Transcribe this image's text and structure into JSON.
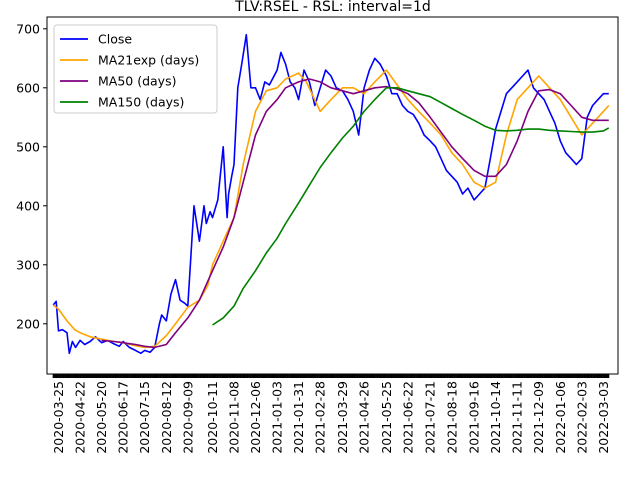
{
  "chart_data": {
    "type": "line",
    "title": "TLV:RSEL - RSL: interval=1d",
    "xlabel": "",
    "ylabel": "",
    "x_ticks": [
      "2020-03-25",
      "2020-04-22",
      "2020-05-20",
      "2020-06-17",
      "2020-07-15",
      "2020-08-12",
      "2020-09-09",
      "2020-10-11",
      "2020-11-08",
      "2020-12-06",
      "2021-01-03",
      "2021-01-31",
      "2021-02-28",
      "2021-03-29",
      "2021-04-26",
      "2021-05-25",
      "2021-06-22",
      "2021-07-21",
      "2021-08-18",
      "2021-09-16",
      "2021-10-14",
      "2021-11-11",
      "2021-12-09",
      "2022-01-06",
      "2022-02-03",
      "2022-03-03"
    ],
    "y_ticks": [
      200,
      300,
      400,
      500,
      600,
      700
    ],
    "ylim": [
      115,
      720
    ],
    "grid": false,
    "legend_position": "upper-left",
    "series": [
      {
        "name": "Close",
        "color": "#0000ff",
        "x": [
          "2020-03-18",
          "2020-03-22",
          "2020-03-25",
          "2020-03-30",
          "2020-04-05",
          "2020-04-08",
          "2020-04-12",
          "2020-04-16",
          "2020-04-22",
          "2020-04-28",
          "2020-05-05",
          "2020-05-12",
          "2020-05-20",
          "2020-05-28",
          "2020-06-05",
          "2020-06-12",
          "2020-06-17",
          "2020-06-25",
          "2020-07-03",
          "2020-07-10",
          "2020-07-15",
          "2020-07-22",
          "2020-07-28",
          "2020-08-03",
          "2020-08-06",
          "2020-08-12",
          "2020-08-18",
          "2020-08-24",
          "2020-08-30",
          "2020-09-05",
          "2020-09-09",
          "2020-09-17",
          "2020-09-24",
          "2020-09-30",
          "2020-10-03",
          "2020-10-08",
          "2020-10-11",
          "2020-10-18",
          "2020-10-25",
          "2020-10-30",
          "2020-11-01",
          "2020-11-05",
          "2020-11-08",
          "2020-11-13",
          "2020-11-18",
          "2020-11-24",
          "2020-11-30",
          "2020-12-06",
          "2020-12-12",
          "2020-12-18",
          "2020-12-24",
          "2021-01-03",
          "2021-01-08",
          "2021-01-14",
          "2021-01-20",
          "2021-01-26",
          "2021-01-31",
          "2021-02-07",
          "2021-02-14",
          "2021-02-21",
          "2021-02-28",
          "2021-03-07",
          "2021-03-14",
          "2021-03-21",
          "2021-03-29",
          "2021-04-05",
          "2021-04-12",
          "2021-04-19",
          "2021-04-26",
          "2021-05-03",
          "2021-05-10",
          "2021-05-17",
          "2021-05-25",
          "2021-06-01",
          "2021-06-08",
          "2021-06-15",
          "2021-06-22",
          "2021-06-29",
          "2021-07-06",
          "2021-07-13",
          "2021-07-21",
          "2021-07-28",
          "2021-08-04",
          "2021-08-11",
          "2021-08-18",
          "2021-08-25",
          "2021-09-01",
          "2021-09-08",
          "2021-09-16",
          "2021-09-23",
          "2021-09-30",
          "2021-10-07",
          "2021-10-14",
          "2021-10-21",
          "2021-10-28",
          "2021-11-04",
          "2021-11-11",
          "2021-11-18",
          "2021-11-25",
          "2021-12-02",
          "2021-12-09",
          "2021-12-16",
          "2021-12-23",
          "2021-12-30",
          "2022-01-06",
          "2022-01-13",
          "2022-01-20",
          "2022-01-27",
          "2022-02-03",
          "2022-02-10",
          "2022-02-17",
          "2022-02-24",
          "2022-03-03",
          "2022-03-10"
        ],
        "values": [
          232,
          238,
          188,
          190,
          185,
          150,
          170,
          160,
          172,
          165,
          170,
          178,
          168,
          172,
          166,
          162,
          170,
          160,
          155,
          150,
          155,
          152,
          160,
          200,
          215,
          205,
          250,
          275,
          240,
          235,
          230,
          400,
          340,
          400,
          370,
          390,
          380,
          410,
          500,
          380,
          420,
          450,
          470,
          600,
          640,
          690,
          600,
          600,
          580,
          610,
          605,
          630,
          660,
          640,
          610,
          600,
          580,
          630,
          610,
          570,
          600,
          630,
          620,
          600,
          595,
          580,
          560,
          520,
          600,
          630,
          650,
          640,
          620,
          590,
          590,
          570,
          560,
          555,
          540,
          520,
          510,
          500,
          480,
          460,
          450,
          440,
          420,
          430,
          410,
          420,
          430,
          480,
          530,
          560,
          590,
          600,
          610,
          620,
          630,
          600,
          590,
          580,
          560,
          540,
          510,
          490,
          480,
          470,
          480,
          550,
          570,
          580,
          590,
          590
        ]
      },
      {
        "name": "MA21exp (days)",
        "color": "#ffa500",
        "x": [
          "2020-03-18",
          "2020-03-25",
          "2020-04-05",
          "2020-04-15",
          "2020-04-22",
          "2020-05-05",
          "2020-05-20",
          "2020-06-05",
          "2020-06-17",
          "2020-07-03",
          "2020-07-15",
          "2020-07-28",
          "2020-08-12",
          "2020-08-24",
          "2020-09-09",
          "2020-09-24",
          "2020-10-05",
          "2020-10-11",
          "2020-10-25",
          "2020-11-08",
          "2020-11-20",
          "2020-12-06",
          "2020-12-20",
          "2021-01-03",
          "2021-01-14",
          "2021-01-31",
          "2021-02-10",
          "2021-02-28",
          "2021-03-14",
          "2021-03-29",
          "2021-04-12",
          "2021-04-26",
          "2021-05-10",
          "2021-05-25",
          "2021-06-08",
          "2021-06-22",
          "2021-07-06",
          "2021-07-21",
          "2021-08-04",
          "2021-08-18",
          "2021-09-01",
          "2021-09-16",
          "2021-09-30",
          "2021-10-14",
          "2021-10-28",
          "2021-11-11",
          "2021-11-25",
          "2021-12-09",
          "2021-12-23",
          "2022-01-06",
          "2022-01-20",
          "2022-02-03",
          "2022-02-17",
          "2022-03-03",
          "2022-03-10"
        ],
        "values": [
          232,
          225,
          205,
          190,
          185,
          178,
          174,
          170,
          168,
          163,
          160,
          162,
          180,
          200,
          228,
          240,
          265,
          300,
          340,
          380,
          470,
          560,
          595,
          600,
          615,
          625,
          610,
          560,
          580,
          600,
          600,
          590,
          610,
          630,
          605,
          580,
          560,
          540,
          520,
          490,
          470,
          440,
          430,
          440,
          520,
          580,
          600,
          620,
          600,
          580,
          550,
          520,
          540,
          560,
          570
        ]
      },
      {
        "name": "MA50 (days)",
        "color": "#800080",
        "x": [
          "2020-05-20",
          "2020-06-05",
          "2020-06-17",
          "2020-07-03",
          "2020-07-15",
          "2020-07-28",
          "2020-08-12",
          "2020-08-24",
          "2020-09-09",
          "2020-09-24",
          "2020-10-11",
          "2020-10-25",
          "2020-11-08",
          "2020-11-20",
          "2020-12-06",
          "2020-12-20",
          "2021-01-03",
          "2021-01-14",
          "2021-01-31",
          "2021-02-14",
          "2021-02-28",
          "2021-03-14",
          "2021-03-29",
          "2021-04-12",
          "2021-04-26",
          "2021-05-10",
          "2021-05-25",
          "2021-06-08",
          "2021-06-22",
          "2021-07-06",
          "2021-07-21",
          "2021-08-04",
          "2021-08-18",
          "2021-09-01",
          "2021-09-16",
          "2021-09-30",
          "2021-10-14",
          "2021-10-28",
          "2021-11-11",
          "2021-11-25",
          "2021-12-09",
          "2021-12-23",
          "2022-01-06",
          "2022-01-20",
          "2022-02-03",
          "2022-02-17",
          "2022-03-03",
          "2022-03-10"
        ],
        "values": [
          172,
          170,
          168,
          165,
          162,
          160,
          165,
          185,
          210,
          240,
          290,
          330,
          380,
          440,
          520,
          560,
          580,
          600,
          610,
          615,
          610,
          600,
          595,
          590,
          595,
          600,
          602,
          598,
          590,
          575,
          550,
          525,
          500,
          480,
          460,
          450,
          450,
          470,
          510,
          560,
          595,
          597,
          590,
          570,
          550,
          545,
          545,
          545
        ]
      },
      {
        "name": "MA150 (days)",
        "color": "#008000",
        "x": [
          "2020-10-11",
          "2020-10-25",
          "2020-11-08",
          "2020-11-20",
          "2020-12-06",
          "2020-12-20",
          "2021-01-03",
          "2021-01-14",
          "2021-01-31",
          "2021-02-14",
          "2021-02-28",
          "2021-03-14",
          "2021-03-29",
          "2021-04-12",
          "2021-04-26",
          "2021-05-10",
          "2021-05-25",
          "2021-06-08",
          "2021-06-22",
          "2021-07-06",
          "2021-07-21",
          "2021-08-04",
          "2021-08-18",
          "2021-09-01",
          "2021-09-16",
          "2021-09-30",
          "2021-10-14",
          "2021-10-28",
          "2021-11-11",
          "2021-11-25",
          "2021-12-09",
          "2021-12-23",
          "2022-01-06",
          "2022-01-20",
          "2022-02-03",
          "2022-02-17",
          "2022-03-03",
          "2022-03-10"
        ],
        "values": [
          198,
          210,
          230,
          260,
          290,
          320,
          345,
          370,
          405,
          435,
          465,
          490,
          515,
          535,
          560,
          580,
          600,
          600,
          595,
          590,
          585,
          575,
          565,
          555,
          545,
          535,
          528,
          527,
          528,
          530,
          530,
          528,
          527,
          526,
          525,
          525,
          527,
          532
        ]
      }
    ]
  }
}
